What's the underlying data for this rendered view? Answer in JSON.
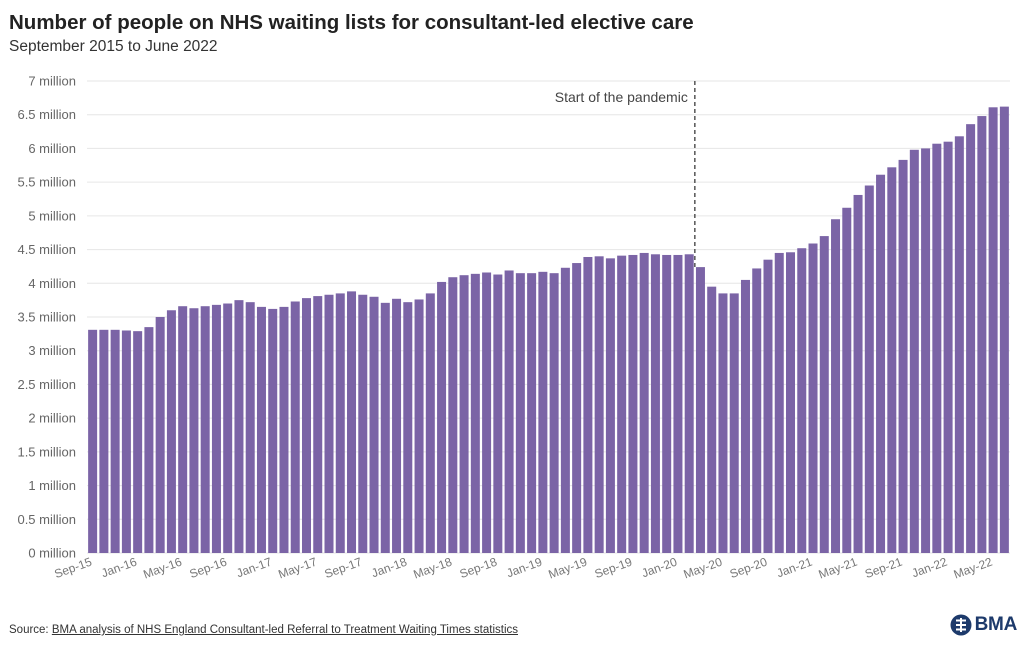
{
  "header": {
    "title": "Number of people on NHS waiting lists for consultant-led elective care",
    "subtitle": "September 2015 to June 2022"
  },
  "footer": {
    "source_label": "Source:",
    "source_link": "BMA analysis of NHS England Consultant-led Referral to Treatment Waiting Times statistics",
    "logo_text": "BMA"
  },
  "colors": {
    "bar": "#7b64a6",
    "grid": "#e6e6e6",
    "annotation_line": "#555555",
    "logo": "#1d3a6b"
  },
  "chart_data": {
    "type": "bar",
    "title": "Number of people on NHS waiting lists for consultant-led elective care",
    "subtitle": "September 2015 to June 2022",
    "xlabel": "",
    "ylabel": "",
    "ylim": [
      0,
      7
    ],
    "y_unit": "million",
    "yticks": [
      "0 million",
      "0.5 million",
      "1 million",
      "1.5 million",
      "2 million",
      "2.5 million",
      "3 million",
      "3.5 million",
      "4 million",
      "4.5 million",
      "5 million",
      "5.5 million",
      "6 million",
      "6.5 million",
      "7 million"
    ],
    "grid": true,
    "legend": "none",
    "categories": [
      "Sep-15",
      "Oct-15",
      "Nov-15",
      "Dec-15",
      "Jan-16",
      "Feb-16",
      "Mar-16",
      "Apr-16",
      "May-16",
      "Jun-16",
      "Jul-16",
      "Aug-16",
      "Sep-16",
      "Oct-16",
      "Nov-16",
      "Dec-16",
      "Jan-17",
      "Feb-17",
      "Mar-17",
      "Apr-17",
      "May-17",
      "Jun-17",
      "Jul-17",
      "Aug-17",
      "Sep-17",
      "Oct-17",
      "Nov-17",
      "Dec-17",
      "Jan-18",
      "Feb-18",
      "Mar-18",
      "Apr-18",
      "May-18",
      "Jun-18",
      "Jul-18",
      "Aug-18",
      "Sep-18",
      "Oct-18",
      "Nov-18",
      "Dec-18",
      "Jan-19",
      "Feb-19",
      "Mar-19",
      "Apr-19",
      "May-19",
      "Jun-19",
      "Jul-19",
      "Aug-19",
      "Sep-19",
      "Oct-19",
      "Nov-19",
      "Dec-19",
      "Jan-20",
      "Feb-20",
      "Mar-20",
      "Apr-20",
      "May-20",
      "Jun-20",
      "Jul-20",
      "Aug-20",
      "Sep-20",
      "Oct-20",
      "Nov-20",
      "Dec-20",
      "Jan-21",
      "Feb-21",
      "Mar-21",
      "Apr-21",
      "May-21",
      "Jun-21",
      "Jul-21",
      "Aug-21",
      "Sep-21",
      "Oct-21",
      "Nov-21",
      "Dec-21",
      "Jan-22",
      "Feb-22",
      "Mar-22",
      "Apr-22",
      "May-22",
      "Jun-22"
    ],
    "xtick_labels": [
      "Sep-15",
      "Jan-16",
      "May-16",
      "Sep-16",
      "Jan-17",
      "May-17",
      "Sep-17",
      "Jan-18",
      "May-18",
      "Sep-18",
      "Jan-19",
      "May-19",
      "Sep-19",
      "Jan-20",
      "May-20",
      "Sep-20",
      "Jan-21",
      "May-21",
      "Sep-21",
      "Jan-22",
      "May-22"
    ],
    "values": [
      3.31,
      3.31,
      3.31,
      3.3,
      3.29,
      3.35,
      3.5,
      3.6,
      3.66,
      3.63,
      3.66,
      3.68,
      3.7,
      3.75,
      3.72,
      3.65,
      3.62,
      3.65,
      3.73,
      3.78,
      3.81,
      3.83,
      3.85,
      3.88,
      3.83,
      3.8,
      3.71,
      3.77,
      3.72,
      3.76,
      3.85,
      4.02,
      4.09,
      4.12,
      4.14,
      4.16,
      4.13,
      4.19,
      4.15,
      4.15,
      4.17,
      4.15,
      4.23,
      4.3,
      4.39,
      4.4,
      4.37,
      4.41,
      4.42,
      4.45,
      4.43,
      4.42,
      4.42,
      4.43,
      4.24,
      3.95,
      3.85,
      3.85,
      4.05,
      4.22,
      4.35,
      4.45,
      4.46,
      4.52,
      4.59,
      4.7,
      4.95,
      5.12,
      5.31,
      5.45,
      5.61,
      5.72,
      5.83,
      5.98,
      6.0,
      6.07,
      6.1,
      6.18,
      6.36,
      6.48,
      6.61,
      6.62
    ],
    "annotations": [
      {
        "text": "Start of the pandemic",
        "x": "Mar-20"
      }
    ]
  }
}
